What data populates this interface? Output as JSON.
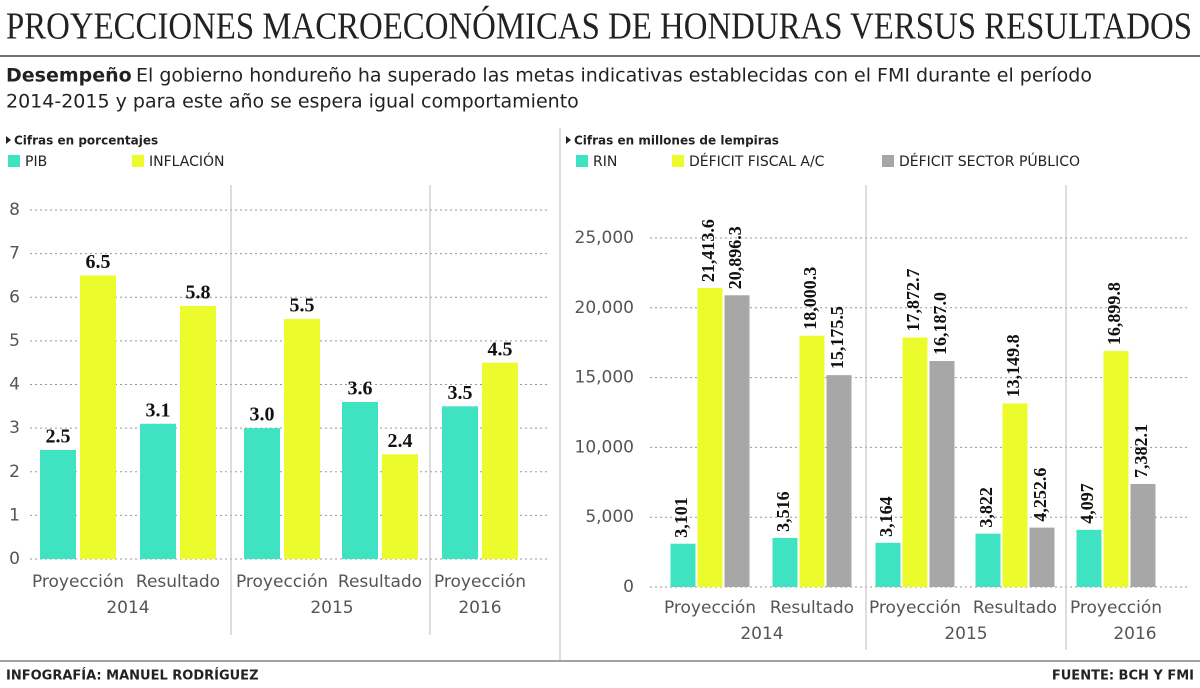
{
  "header": {
    "title": "PROYECCIONES MACROECONÓMICAS DE HONDURAS VERSUS RESULTADOS",
    "lead": "Desempeño",
    "text": [
      "El gobierno hondureño ha superado las metas indicativas establecidas con el FMI durante el período",
      "2014-2015 y para este año se espera igual comportamiento"
    ]
  },
  "chart_data": [
    {
      "type": "bar",
      "note": "Cifras en porcentajes",
      "categories": [
        "Proyección",
        "Resultado",
        "Proyección",
        "Resultado",
        "Proyección"
      ],
      "groups": [
        "2014",
        "2015",
        "2016"
      ],
      "series": [
        {
          "name": "PIB",
          "color": "#3fe3c2",
          "values": [
            2.5,
            3.1,
            3.0,
            3.6,
            3.5
          ],
          "value_labels": [
            "2.5",
            "3.1",
            "3.0",
            "3.6",
            "3.5"
          ]
        },
        {
          "name": "INFLACIÓN",
          "color": "#ebfb2c",
          "values": [
            6.5,
            5.8,
            5.5,
            2.4,
            4.5
          ],
          "value_labels": [
            "6.5",
            "5.8",
            "5.5",
            "2.4",
            "4.5"
          ]
        }
      ],
      "ylim": [
        0,
        8
      ],
      "yticks": [
        0,
        1,
        2,
        3,
        4,
        5,
        6,
        7,
        8
      ],
      "grid": true
    },
    {
      "type": "bar",
      "note": "Cifras en millones de lempiras",
      "categories": [
        "Proyección",
        "Resultado",
        "Proyección",
        "Resultado",
        "Proyección"
      ],
      "groups": [
        "2014",
        "2015",
        "2016"
      ],
      "series": [
        {
          "name": "RIN",
          "color": "#3fe3c2",
          "values": [
            3101,
            3516,
            3164,
            3822,
            4097
          ],
          "value_labels": [
            "3,101",
            "3,516",
            "3,164",
            "3,822",
            "4,097"
          ]
        },
        {
          "name": "DÉFICIT FISCAL A/C",
          "color": "#ebfb2c",
          "values": [
            21413.6,
            18000.3,
            17872.7,
            13149.8,
            16899.8
          ],
          "value_labels": [
            "21,413.6",
            "18,000.3",
            "17,872.7",
            "13,149.8",
            "16,899.8"
          ]
        },
        {
          "name": "DÉFICIT SECTOR PÚBLICO",
          "color": "#a7a7a7",
          "values": [
            20896.3,
            15175.5,
            16187.0,
            4252.6,
            7382.1
          ],
          "value_labels": [
            "20,896.3",
            "15,175.5",
            "16,187.0",
            "4,252.6",
            "7,382.1"
          ]
        }
      ],
      "ylim": [
        0,
        25000
      ],
      "yticks": [
        0,
        {
          "value": 5000,
          "label": "5,000"
        },
        {
          "value": 10000,
          "label": "10,000"
        },
        {
          "value": 15000,
          "label": "15,000"
        },
        {
          "value": 20000,
          "label": "20,000"
        },
        {
          "value": 25000,
          "label": "25,000"
        }
      ],
      "grid": true
    }
  ],
  "footer": {
    "credit": "INFOGRAFÍA: MANUEL RODRÍGUEZ",
    "source": "FUENTE: BCH Y FMI"
  }
}
